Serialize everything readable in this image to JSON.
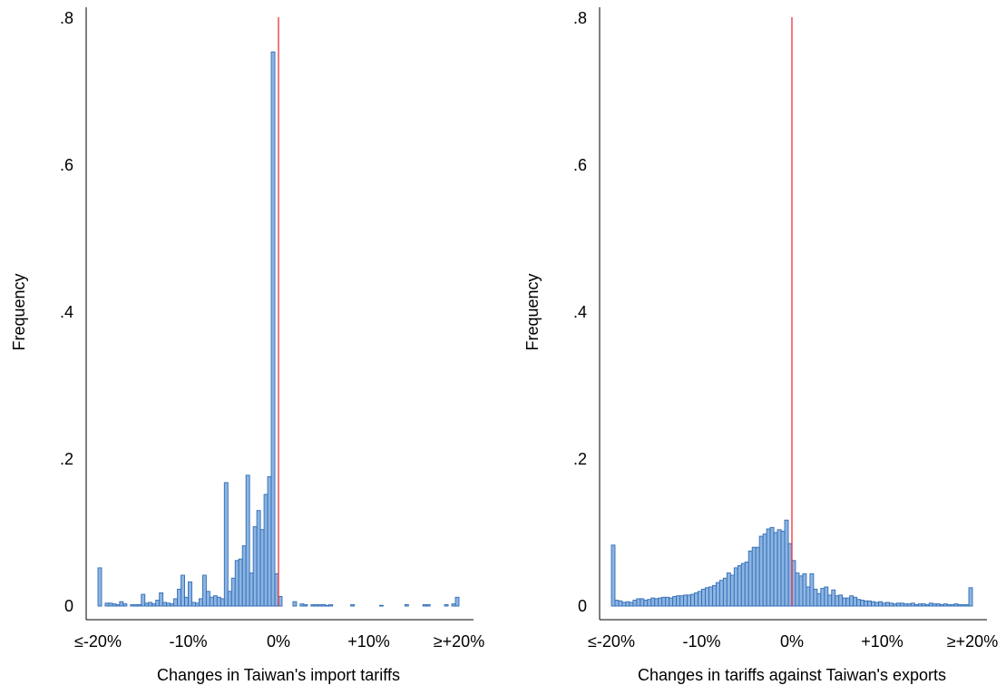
{
  "chart_data": [
    {
      "type": "bar",
      "xlabel": "Changes in Taiwan's import tariffs",
      "ylabel": "Frequency",
      "ylim": [
        0,
        0.8
      ],
      "yticks": [
        0,
        0.2,
        0.4,
        0.6,
        0.8
      ],
      "ytick_labels": [
        "0",
        ".2",
        ".4",
        ".6",
        ".8"
      ],
      "xlim": [
        -20,
        20
      ],
      "xticks": [
        -20,
        -10,
        0,
        10,
        20
      ],
      "xtick_labels": [
        "≤-20%",
        "-10%",
        "0%",
        "+10%",
        "≥+20%"
      ],
      "bin_width": 0.4,
      "reference_line_x": 0,
      "bar_color": "#8db4e2",
      "bar_edge_color": "#2e6cb5",
      "line_color": "#e8212d",
      "bins_start": [
        -20,
        -19.6,
        -19.2,
        -18.8,
        -18.4,
        -18,
        -17.6,
        -17.2,
        -16.8,
        -16.4,
        -16,
        -15.6,
        -15.2,
        -14.8,
        -14.4,
        -14,
        -13.6,
        -13.2,
        -12.8,
        -12.4,
        -12,
        -11.6,
        -11.2,
        -10.8,
        -10.4,
        -10,
        -9.6,
        -9.2,
        -8.8,
        -8.4,
        -8,
        -7.6,
        -7.2,
        -6.8,
        -6.4,
        -6,
        -5.6,
        -5.2,
        -4.8,
        -4.4,
        -4,
        -3.6,
        -3.2,
        -2.8,
        -2.4,
        -2,
        -1.6,
        -1.2,
        -0.8,
        -0.4,
        0,
        0.4,
        0.8,
        1.2,
        1.6,
        2,
        2.4,
        2.8,
        3.2,
        3.6,
        4,
        4.4,
        4.8,
        5.2,
        5.6,
        6,
        6.4,
        6.8,
        7.2,
        7.6,
        8,
        8.4,
        8.8,
        9.2,
        9.6,
        10,
        10.4,
        10.8,
        11.2,
        11.6,
        12,
        12.4,
        12.8,
        13.2,
        13.6,
        14,
        14.4,
        14.8,
        15.2,
        15.6,
        16,
        16.4,
        16.8,
        17.2,
        17.6,
        18,
        18.4,
        18.8,
        19.2,
        19.6
      ],
      "values": [
        0.052,
        0,
        0.004,
        0.004,
        0.003,
        0.002,
        0.006,
        0.003,
        0,
        0.002,
        0.002,
        0.002,
        0.016,
        0.004,
        0.005,
        0.003,
        0.008,
        0.018,
        0.005,
        0.004,
        0.003,
        0.01,
        0.023,
        0.042,
        0.012,
        0.033,
        0.005,
        0.004,
        0.01,
        0.042,
        0.02,
        0.012,
        0.014,
        0.012,
        0.01,
        0.168,
        0.02,
        0.038,
        0.062,
        0.064,
        0.082,
        0.178,
        0.045,
        0.108,
        0.13,
        0.104,
        0.152,
        0.176,
        0.754,
        0.044,
        0.013,
        0,
        0,
        0,
        0.006,
        0,
        0.003,
        0.002,
        0,
        0.002,
        0.002,
        0.002,
        0.002,
        0.001,
        0.002,
        0,
        0,
        0,
        0,
        0,
        0.002,
        0,
        0,
        0,
        0,
        0,
        0,
        0,
        0.001,
        0,
        0,
        0,
        0,
        0,
        0,
        0.002,
        0,
        0,
        0,
        0,
        0.002,
        0.002,
        0,
        0,
        0,
        0,
        0.002,
        0,
        0.003,
        0.012
      ]
    },
    {
      "type": "bar",
      "xlabel": "Changes in tariffs against Taiwan's exports",
      "ylabel": "Frequency",
      "ylim": [
        0,
        0.8
      ],
      "yticks": [
        0,
        0.2,
        0.4,
        0.6,
        0.8
      ],
      "ytick_labels": [
        "0",
        ".2",
        ".4",
        ".6",
        ".8"
      ],
      "xlim": [
        -20,
        20
      ],
      "xticks": [
        -20,
        -10,
        0,
        10,
        20
      ],
      "xtick_labels": [
        "≤-20%",
        "-10%",
        "0%",
        "+10%",
        "≥+20%"
      ],
      "bin_width": 0.4,
      "reference_line_x": 0,
      "bar_color": "#8db4e2",
      "bar_edge_color": "#2e6cb5",
      "line_color": "#e8212d",
      "bins_start": [
        -20,
        -19.6,
        -19.2,
        -18.8,
        -18.4,
        -18,
        -17.6,
        -17.2,
        -16.8,
        -16.4,
        -16,
        -15.6,
        -15.2,
        -14.8,
        -14.4,
        -14,
        -13.6,
        -13.2,
        -12.8,
        -12.4,
        -12,
        -11.6,
        -11.2,
        -10.8,
        -10.4,
        -10,
        -9.6,
        -9.2,
        -8.8,
        -8.4,
        -8,
        -7.6,
        -7.2,
        -6.8,
        -6.4,
        -6,
        -5.6,
        -5.2,
        -4.8,
        -4.4,
        -4,
        -3.6,
        -3.2,
        -2.8,
        -2.4,
        -2,
        -1.6,
        -1.2,
        -0.8,
        -0.4,
        0,
        0.4,
        0.8,
        1.2,
        1.6,
        2,
        2.4,
        2.8,
        3.2,
        3.6,
        4,
        4.4,
        4.8,
        5.2,
        5.6,
        6,
        6.4,
        6.8,
        7.2,
        7.6,
        8,
        8.4,
        8.8,
        9.2,
        9.6,
        10,
        10.4,
        10.8,
        11.2,
        11.6,
        12,
        12.4,
        12.8,
        13.2,
        13.6,
        14,
        14.4,
        14.8,
        15.2,
        15.6,
        16,
        16.4,
        16.8,
        17.2,
        17.6,
        18,
        18.4,
        18.8,
        19.2,
        19.6
      ],
      "values": [
        0.083,
        0.008,
        0.007,
        0.005,
        0.006,
        0.005,
        0.008,
        0.01,
        0.01,
        0.008,
        0.009,
        0.011,
        0.01,
        0.011,
        0.012,
        0.012,
        0.011,
        0.013,
        0.014,
        0.014,
        0.015,
        0.015,
        0.016,
        0.018,
        0.02,
        0.023,
        0.025,
        0.026,
        0.028,
        0.032,
        0.035,
        0.038,
        0.045,
        0.042,
        0.052,
        0.055,
        0.058,
        0.06,
        0.075,
        0.08,
        0.08,
        0.095,
        0.098,
        0.105,
        0.107,
        0.1,
        0.104,
        0.102,
        0.117,
        0.085,
        0.062,
        0.045,
        0.041,
        0.044,
        0.026,
        0.044,
        0.023,
        0.017,
        0.024,
        0.026,
        0.015,
        0.022,
        0.014,
        0.015,
        0.011,
        0.011,
        0.014,
        0.012,
        0.009,
        0.008,
        0.007,
        0.007,
        0.006,
        0.005,
        0.006,
        0.004,
        0.005,
        0.004,
        0.003,
        0.004,
        0.004,
        0.003,
        0.003,
        0.004,
        0.002,
        0.003,
        0.003,
        0.002,
        0.004,
        0.003,
        0.003,
        0.002,
        0.003,
        0.002,
        0.002,
        0.003,
        0.002,
        0.002,
        0.002,
        0.025
      ]
    }
  ]
}
